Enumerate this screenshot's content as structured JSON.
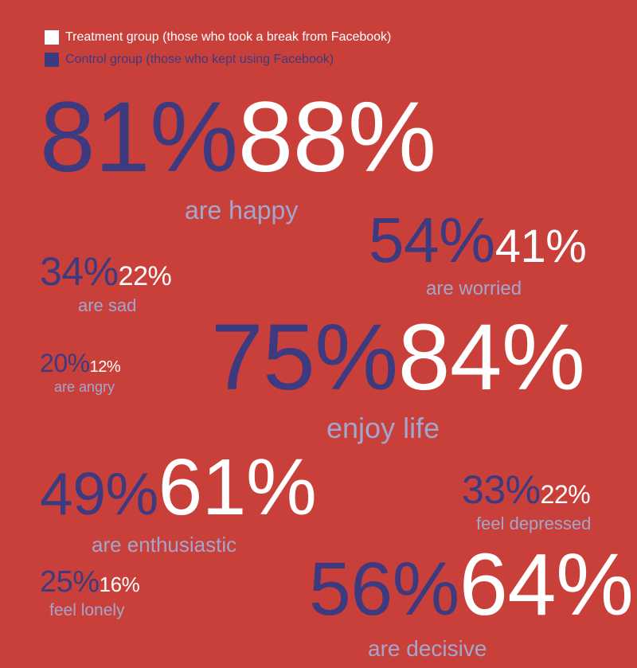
{
  "legend": {
    "treatment": {
      "label": "Treatment group (those who took a break from Facebook)",
      "color": "#ffffff"
    },
    "control": {
      "label": "Control group (those who kept using Facebook)",
      "color": "#3d3a80"
    }
  },
  "colors": {
    "background": "#c9403a",
    "label": "#a3a6cc"
  },
  "chart_data": {
    "type": "table",
    "title": "",
    "series_names": [
      "Control group (those who kept using Facebook)",
      "Treatment group (those who took a break from Facebook)"
    ],
    "items": [
      {
        "label": "are happy",
        "control": "81%",
        "treatment": "88%"
      },
      {
        "label": "are worried",
        "control": "54%",
        "treatment": "41%"
      },
      {
        "label": "are sad",
        "control": "34%",
        "treatment": "22%"
      },
      {
        "label": "are angry",
        "control": "20%",
        "treatment": "12%"
      },
      {
        "label": "enjoy life",
        "control": "75%",
        "treatment": "84%"
      },
      {
        "label": "are enthusiastic",
        "control": "49%",
        "treatment": "61%"
      },
      {
        "label": "feel depressed",
        "control": "33%",
        "treatment": "22%"
      },
      {
        "label": "feel lonely",
        "control": "25%",
        "treatment": "16%"
      },
      {
        "label": "are decisive",
        "control": "56%",
        "treatment": "64%"
      }
    ]
  }
}
